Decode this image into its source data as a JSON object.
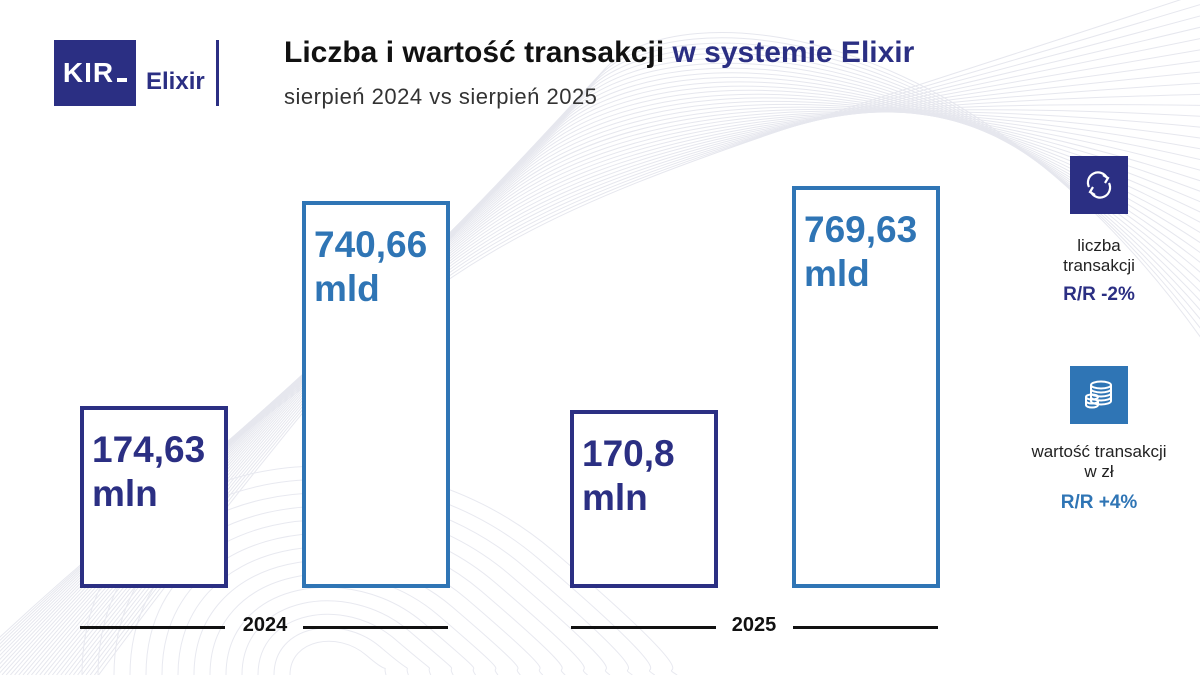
{
  "header": {
    "logo_text": "KIR",
    "brand": "Elixir",
    "title_main": "Liczba i wartość transakcji",
    "title_accent": "w systemie Elixir",
    "subtitle": "sierpień 2024 vs sierpień 2025"
  },
  "chart_data": {
    "type": "bar",
    "title": "Liczba i wartość transakcji w systemie Elixir",
    "subtitle": "sierpień 2024 vs sierpień 2025",
    "categories": [
      "2024",
      "2025"
    ],
    "series": [
      {
        "name": "liczba transakcji",
        "values": [
          174.63,
          170.8
        ],
        "unit": "mln",
        "labels": [
          {
            "number": "174,63",
            "unit": "mln"
          },
          {
            "number": "170,8",
            "unit": "mln"
          }
        ],
        "color": "#2b2f83"
      },
      {
        "name": "wartość transakcji w zł",
        "values": [
          740.66,
          769.63
        ],
        "unit": "mld",
        "labels": [
          {
            "number": "740,66",
            "unit": "mld"
          },
          {
            "number": "769,63",
            "unit": "mld"
          }
        ],
        "color": "#2f75b5"
      }
    ],
    "grid": false
  },
  "legend": {
    "count": {
      "icon": "refresh-arrows-icon",
      "label_line1": "liczba",
      "label_line2": "transakcji",
      "change": "R/R -2%"
    },
    "value": {
      "icon": "coin-stack-icon",
      "label_line1": "wartość transakcji",
      "label_line2": "w zł",
      "change": "R/R +4%"
    }
  },
  "colors": {
    "navy": "#2b2f83",
    "blue": "#2f75b5"
  }
}
